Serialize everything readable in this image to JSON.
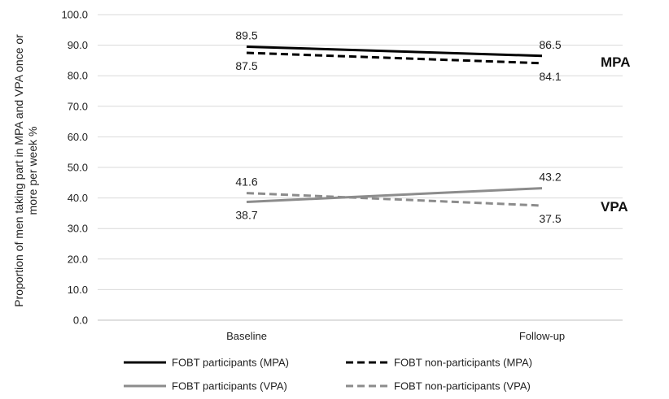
{
  "chart_data": {
    "type": "line",
    "categories": [
      "Baseline",
      "Follow-up"
    ],
    "ylabel_lines": [
      "Proportion of men taking part in MPA and VPA once or",
      "more per week %"
    ],
    "ylim": [
      0,
      100
    ],
    "yticks": [
      "0.0",
      "10.0",
      "20.0",
      "30.0",
      "40.0",
      "50.0",
      "60.0",
      "70.0",
      "80.0",
      "90.0",
      "100.0"
    ],
    "grid": true,
    "legend_position": "bottom",
    "group_labels": {
      "mpa": "MPA",
      "vpa": "VPA"
    },
    "series": [
      {
        "name": "FOBT participants (MPA)",
        "values": [
          89.5,
          86.5
        ],
        "color": "#000000",
        "dash": "solid"
      },
      {
        "name": "FOBT non-participants (MPA)",
        "values": [
          87.5,
          84.1
        ],
        "color": "#000000",
        "dash": "dashed"
      },
      {
        "name": "FOBT participants (VPA)",
        "values": [
          38.7,
          43.2
        ],
        "color": "#8c8c8c",
        "dash": "solid"
      },
      {
        "name": "FOBT non-participants (VPA)",
        "values": [
          41.6,
          37.5
        ],
        "color": "#8c8c8c",
        "dash": "dashed"
      }
    ],
    "data_labels": [
      {
        "text": "89.5",
        "series": 0,
        "point": 0,
        "pos": "above"
      },
      {
        "text": "86.5",
        "series": 0,
        "point": 1,
        "pos": "above"
      },
      {
        "text": "87.5",
        "series": 1,
        "point": 0,
        "pos": "below"
      },
      {
        "text": "84.1",
        "series": 1,
        "point": 1,
        "pos": "below"
      },
      {
        "text": "38.7",
        "series": 2,
        "point": 0,
        "pos": "below"
      },
      {
        "text": "43.2",
        "series": 2,
        "point": 1,
        "pos": "above"
      },
      {
        "text": "41.6",
        "series": 3,
        "point": 0,
        "pos": "above"
      },
      {
        "text": "37.5",
        "series": 3,
        "point": 1,
        "pos": "below"
      }
    ]
  }
}
